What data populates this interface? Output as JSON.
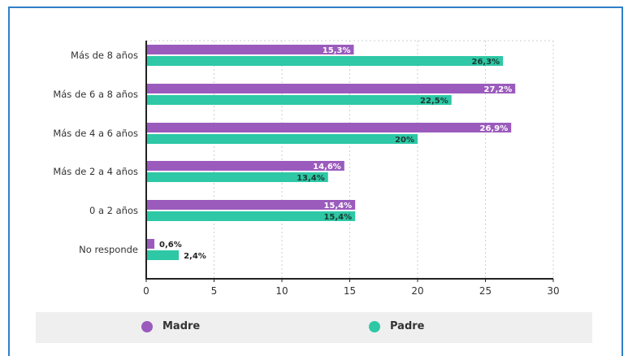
{
  "chart_data": {
    "type": "bar",
    "orientation": "horizontal",
    "categories": [
      "Más de 8 años",
      "Más de 6 a 8 años",
      "Más de 4 a 6 años",
      "Más de 2 a 4 años",
      "0 a 2 años",
      "No responde"
    ],
    "series": [
      {
        "name": "Madre",
        "values": [
          15.3,
          27.2,
          26.9,
          14.6,
          15.4,
          0.6
        ],
        "labels": [
          "15,3%",
          "27,2%",
          "26,9%",
          "14,6%",
          "15,4%",
          "0,6%"
        ],
        "color": "#9b5bbd"
      },
      {
        "name": "Padre",
        "values": [
          26.3,
          22.5,
          20,
          13.4,
          15.4,
          2.4
        ],
        "labels": [
          "26,3%",
          "22,5%",
          "20%",
          "13,4%",
          "15,4%",
          "2,4%"
        ],
        "color": "#2ec8a6"
      }
    ],
    "xlim": [
      0,
      30
    ],
    "xticks": [
      "0",
      "5",
      "10",
      "15",
      "20",
      "25",
      "30"
    ],
    "grid": true,
    "legend_position": "bottom"
  },
  "colors": {
    "frame_border": "#2f7fc8",
    "madre": "#9b5bbd",
    "padre": "#2ec8a6"
  }
}
